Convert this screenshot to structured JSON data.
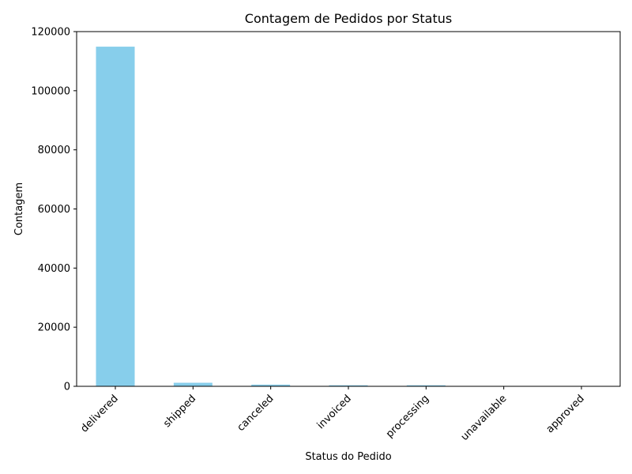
{
  "chart_data": {
    "type": "bar",
    "title": "Contagem de Pedidos por Status",
    "xlabel": "Status do Pedido",
    "ylabel": "Contagem",
    "categories": [
      "delivered",
      "shipped",
      "canceled",
      "invoiced",
      "processing",
      "unavailable",
      "approved"
    ],
    "values": [
      114900,
      1200,
      570,
      360,
      360,
      7,
      3
    ],
    "ylim": [
      0,
      120000
    ],
    "yticks": [
      "0",
      "20000",
      "40000",
      "60000",
      "80000",
      "100000",
      "120000"
    ],
    "bar_color": "#87ceeb",
    "grid": false,
    "legend": "none"
  }
}
